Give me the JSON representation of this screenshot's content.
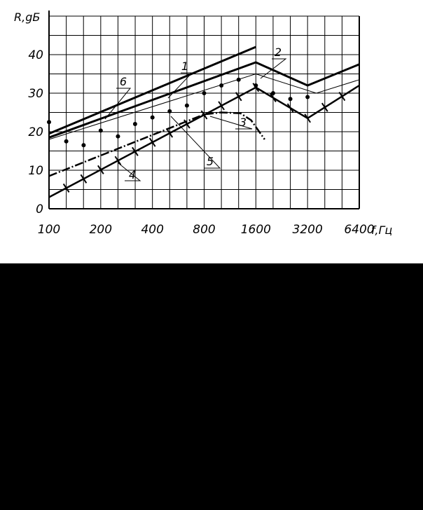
{
  "chart_data": {
    "type": "line",
    "xlabel": "f,Гц",
    "ylabel": "R,gБ",
    "x_scale": "log2",
    "x_ticks": [
      100,
      200,
      400,
      800,
      1600,
      3200,
      6400
    ],
    "x_tick_labels": [
      "100",
      "200",
      "400",
      "800",
      "1600",
      "3200",
      "6400"
    ],
    "xlim": [
      100,
      6400
    ],
    "y_ticks": [
      0,
      10,
      20,
      30,
      40
    ],
    "y_tick_labels": [
      "0",
      "10",
      "20",
      "30",
      "40"
    ],
    "ylim": [
      0,
      50
    ],
    "grid": true,
    "series": [
      {
        "name": "1",
        "style": "bold",
        "x": [
          100,
          1600
        ],
        "y": [
          19.5,
          42
        ]
      },
      {
        "name": "2",
        "style": "bold",
        "x": [
          100,
          1600,
          3200,
          6400
        ],
        "y": [
          18.5,
          38,
          32,
          37.5
        ]
      },
      {
        "name": "3",
        "style": "dash-dot-bold",
        "x": [
          100,
          800,
          1000,
          1300,
          1500,
          1800
        ],
        "y": [
          8.5,
          24.5,
          25,
          24.8,
          23,
          18
        ]
      },
      {
        "name": "4",
        "style": "crossed",
        "x": [
          100,
          1600,
          3200,
          6400
        ],
        "y": [
          3,
          31.5,
          23.5,
          32
        ]
      },
      {
        "name": "5",
        "style": "dots",
        "x": [
          100,
          126,
          159,
          200,
          252,
          317,
          400,
          504,
          635,
          800,
          1008,
          1270,
          1600,
          2016,
          2540,
          3200
        ],
        "y": [
          22.5,
          17.5,
          16.5,
          20.3,
          18.8,
          22,
          23.7,
          25.3,
          26.8,
          30,
          32,
          33.5,
          32,
          30,
          28.5,
          29
        ]
      },
      {
        "name": "6",
        "style": "thin",
        "x": [
          100,
          1600,
          3600,
          6400
        ],
        "y": [
          18,
          35,
          30,
          33.5
        ]
      }
    ],
    "crossed_marks_x": [
      126,
      159,
      200,
      252,
      317,
      400,
      504,
      635,
      800,
      1008,
      1270,
      1600,
      2016,
      2540,
      3200,
      4032,
      5080
    ]
  }
}
